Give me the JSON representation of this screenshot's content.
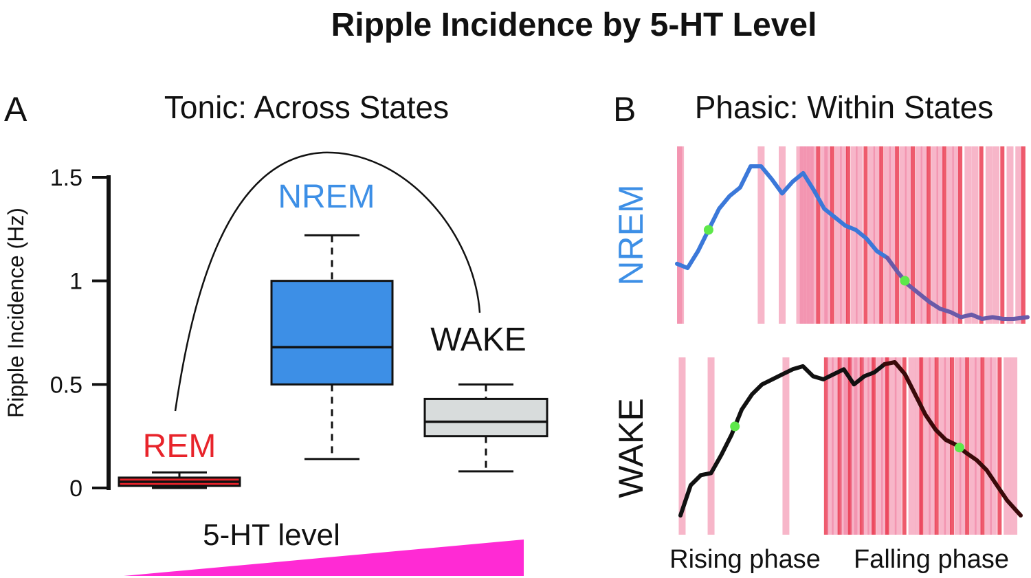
{
  "title": "Ripple Incidence by 5-HT Level",
  "panel_a": {
    "letter": "A",
    "title": "Tonic: Across States",
    "gradient_label": "5-HT level"
  },
  "panel_b": {
    "letter": "B",
    "title": "Phasic: Within States",
    "x_labels": [
      "Rising phase",
      "Falling phase"
    ],
    "rows": [
      {
        "label": "NREM",
        "label_color": "#3d8fe6",
        "line_color": "#3b78d9",
        "line_color_end": "#6a5aa8"
      },
      {
        "label": "WAKE",
        "label_color": "#111111",
        "line_color": "#111111",
        "line_color_end": "#3a0a0a"
      }
    ]
  },
  "colors": {
    "rem": "#e8242b",
    "nrem": "#3d8fe6",
    "wake": "#d8dcdc",
    "wake_label": "#111111",
    "gradient": "#ff2ad4",
    "ripple_band": "#f07a9c",
    "ripple_band_dense": "#e8243c",
    "marker": "#5ee84a"
  },
  "chart_data": [
    {
      "type": "box",
      "ylabel": "Ripple Incidence (Hz)",
      "ylim": [
        0,
        1.5
      ],
      "yticks": [
        0,
        0.5,
        1,
        1.5
      ],
      "ytick_labels": [
        "0",
        "0.5",
        "1",
        "1.5"
      ],
      "grid": false,
      "series": [
        {
          "name": "REM",
          "whisker_low": 0.0,
          "q1": 0.01,
          "median": 0.03,
          "q3": 0.05,
          "whisker_high": 0.075
        },
        {
          "name": "NREM",
          "whisker_low": 0.14,
          "q1": 0.5,
          "median": 0.68,
          "q3": 1.0,
          "whisker_high": 1.22
        },
        {
          "name": "WAKE",
          "whisker_low": 0.08,
          "q1": 0.25,
          "median": 0.32,
          "q3": 0.43,
          "whisker_high": 0.5
        }
      ]
    },
    {
      "type": "line",
      "xlim": [
        0,
        1
      ],
      "series": [
        {
          "name": "NREM",
          "x": [
            0,
            0.03,
            0.06,
            0.09,
            0.12,
            0.15,
            0.18,
            0.21,
            0.24,
            0.27,
            0.3,
            0.33,
            0.36,
            0.39,
            0.42,
            0.45,
            0.48,
            0.51,
            0.54,
            0.57,
            0.6,
            0.63,
            0.66,
            0.69,
            0.72,
            0.75,
            0.78,
            0.81,
            0.84,
            0.87,
            0.9,
            0.93,
            0.96,
            1.0
          ],
          "y": [
            0.65,
            0.6,
            0.8,
            1.05,
            1.3,
            1.45,
            1.55,
            1.8,
            1.8,
            1.65,
            1.48,
            1.62,
            1.72,
            1.52,
            1.3,
            1.2,
            1.1,
            1.05,
            0.95,
            0.8,
            0.72,
            0.55,
            0.4,
            0.3,
            0.2,
            0.12,
            0.08,
            0.02,
            0.05,
            0.0,
            0.02,
            0.0,
            0.0,
            0.02
          ]
        },
        {
          "name": "WAKE",
          "x": [
            0,
            0.03,
            0.06,
            0.09,
            0.12,
            0.15,
            0.18,
            0.21,
            0.24,
            0.27,
            0.3,
            0.33,
            0.36,
            0.39,
            0.42,
            0.45,
            0.48,
            0.51,
            0.54,
            0.57,
            0.6,
            0.63,
            0.66,
            0.69,
            0.72,
            0.75,
            0.78,
            0.81,
            0.84,
            0.87,
            0.9,
            0.93,
            0.96,
            1.0
          ],
          "y": [
            0.0,
            0.3,
            0.4,
            0.42,
            0.6,
            0.8,
            1.05,
            1.2,
            1.3,
            1.35,
            1.4,
            1.45,
            1.48,
            1.38,
            1.35,
            1.4,
            1.45,
            1.3,
            1.38,
            1.42,
            1.5,
            1.52,
            1.4,
            1.2,
            1.0,
            0.85,
            0.75,
            0.7,
            0.62,
            0.55,
            0.45,
            0.3,
            0.15,
            0.0
          ]
        }
      ],
      "markers": [
        {
          "series": "NREM",
          "x": [
            0.09,
            0.65
          ]
        },
        {
          "series": "WAKE",
          "x": [
            0.16,
            0.82
          ]
        }
      ],
      "ripple_events": {
        "NREM": [
          0.005,
          0.01,
          0.24,
          0.3,
          0.35,
          0.36,
          0.37,
          0.38,
          0.39,
          0.405,
          0.42,
          0.43,
          0.445,
          0.46,
          0.475,
          0.49,
          0.505,
          0.52,
          0.54,
          0.555,
          0.57,
          0.585,
          0.6,
          0.615,
          0.63,
          0.645,
          0.66,
          0.675,
          0.69,
          0.705,
          0.72,
          0.735,
          0.75,
          0.765,
          0.78,
          0.795,
          0.81,
          0.83,
          0.85,
          0.87,
          0.89,
          0.91,
          0.93,
          0.95,
          0.975,
          0.99
        ],
        "WAKE": [
          0.005,
          0.09,
          0.31,
          0.43,
          0.44,
          0.455,
          0.47,
          0.48,
          0.49,
          0.5,
          0.51,
          0.52,
          0.535,
          0.545,
          0.56,
          0.57,
          0.585,
          0.6,
          0.61,
          0.625,
          0.64,
          0.66,
          0.68,
          0.7,
          0.71,
          0.725,
          0.74,
          0.755,
          0.77,
          0.785,
          0.8,
          0.815,
          0.83,
          0.845,
          0.86,
          0.875,
          0.89,
          0.905,
          0.92,
          0.94,
          0.96,
          0.98
        ]
      }
    }
  ]
}
